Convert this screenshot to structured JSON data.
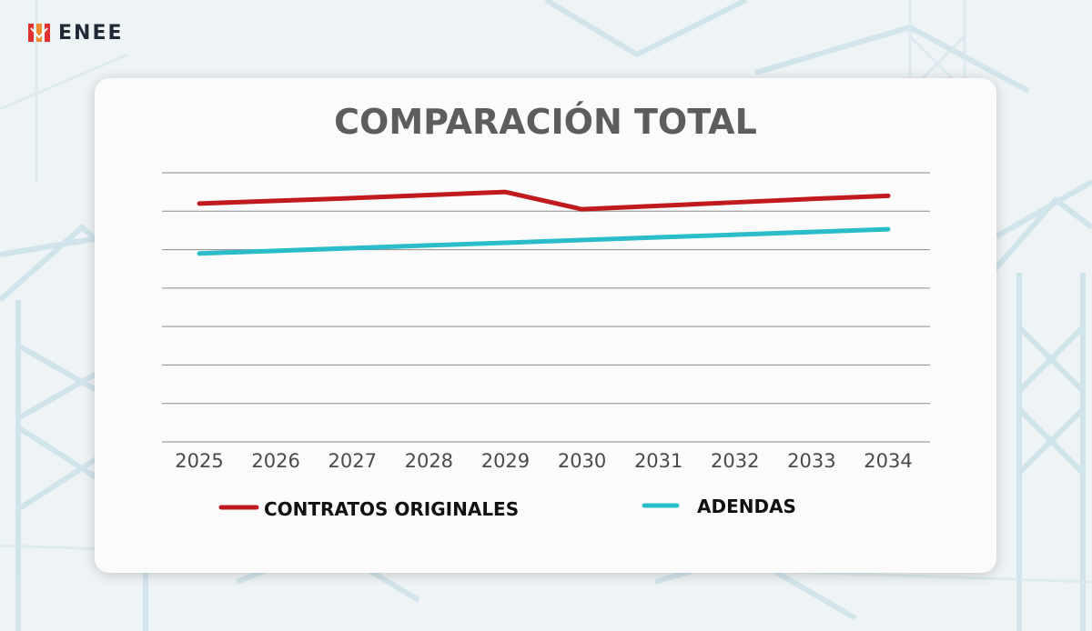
{
  "brand": {
    "name": "ENEE",
    "logo_icon": "enee-logo-icon"
  },
  "colors": {
    "series_1": "#c01a1e",
    "series_2": "#2bbcc9",
    "title": "#5d5d5d",
    "gridline": "#8a8a8a"
  },
  "chart_data": {
    "type": "line",
    "title": "COMPARACIÓN TOTAL",
    "xlabel": "",
    "ylabel": "",
    "x": [
      "2025",
      "2026",
      "2027",
      "2028",
      "2029",
      "2030",
      "2031",
      "2032",
      "2033",
      "2034"
    ],
    "series": [
      {
        "name": "CONTRATOS ORIGINALES",
        "color": "#c01a1e",
        "values": [
          6.2,
          6.27,
          6.34,
          6.42,
          6.5,
          6.05,
          6.14,
          6.23,
          6.32,
          6.4
        ]
      },
      {
        "name": "ADENDAS",
        "color": "#2bbcc9",
        "values": [
          4.9,
          4.97,
          5.04,
          5.11,
          5.18,
          5.25,
          5.32,
          5.39,
          5.46,
          5.53
        ]
      }
    ],
    "ylim": [
      0,
      7
    ],
    "grid": true,
    "legend": "bottom"
  }
}
